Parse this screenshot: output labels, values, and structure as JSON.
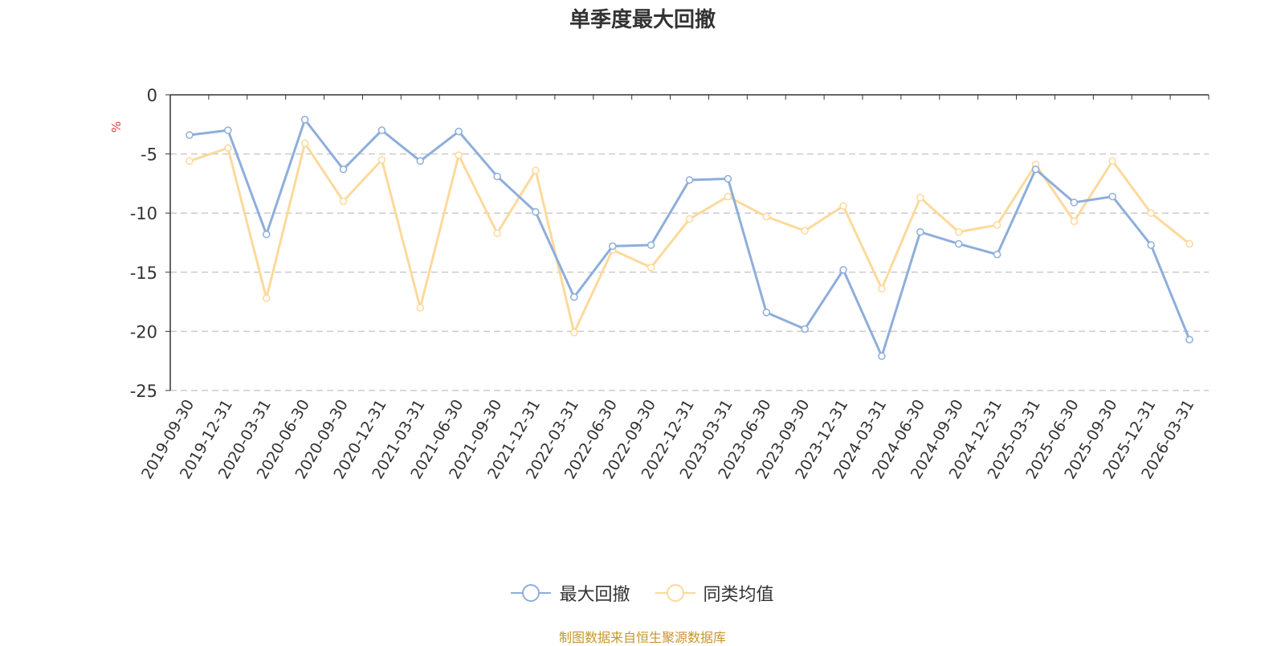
{
  "title": "单季度最大回撤",
  "source_note": "制图数据来自恒生聚源数据库",
  "chart_data": {
    "type": "line",
    "title": "单季度最大回撤",
    "ylabel": "%",
    "ylim": [
      -25,
      0
    ],
    "yticks": [
      0,
      -5,
      -10,
      -15,
      -20,
      -25
    ],
    "grid": true,
    "legend_position": "bottom",
    "categories": [
      "2019-09-30",
      "2019-12-31",
      "2020-03-31",
      "2020-06-30",
      "2020-09-30",
      "2020-12-31",
      "2021-03-31",
      "2021-06-30",
      "2021-09-30",
      "2021-12-31",
      "2022-03-31",
      "2022-06-30",
      "2022-09-30",
      "2022-12-31",
      "2023-03-31",
      "2023-06-30",
      "2023-09-30",
      "2023-12-31",
      "2024-03-31",
      "2024-06-30",
      "2024-09-30",
      "2024-12-31",
      "2025-03-31",
      "2025-06-30",
      "2025-09-30",
      "2025-12-31",
      "2026-03-31"
    ],
    "series": [
      {
        "name": "最大回撤",
        "color": "#8eaedb",
        "values": [
          -3.4,
          -3.0,
          -11.8,
          -2.1,
          -6.3,
          -3.0,
          -5.6,
          -3.1,
          -6.9,
          -9.9,
          -17.1,
          -12.8,
          -12.7,
          -7.2,
          -7.1,
          -18.4,
          -19.8,
          -14.8,
          -22.1,
          -11.6,
          -12.6,
          -13.5,
          -6.3,
          -9.1,
          -8.6,
          -12.7,
          -20.7
        ]
      },
      {
        "name": "同类均值",
        "color": "#fdd99b",
        "values": [
          -5.6,
          -4.5,
          -17.2,
          -4.1,
          -9.0,
          -5.5,
          -18.0,
          -5.1,
          -11.7,
          -6.4,
          -20.1,
          -13.1,
          -14.6,
          -10.5,
          -8.6,
          -10.3,
          -11.5,
          -9.4,
          -16.4,
          -8.7,
          -11.6,
          -11.0,
          -5.9,
          -10.7,
          -5.6,
          -10.0,
          -12.6
        ]
      }
    ]
  }
}
